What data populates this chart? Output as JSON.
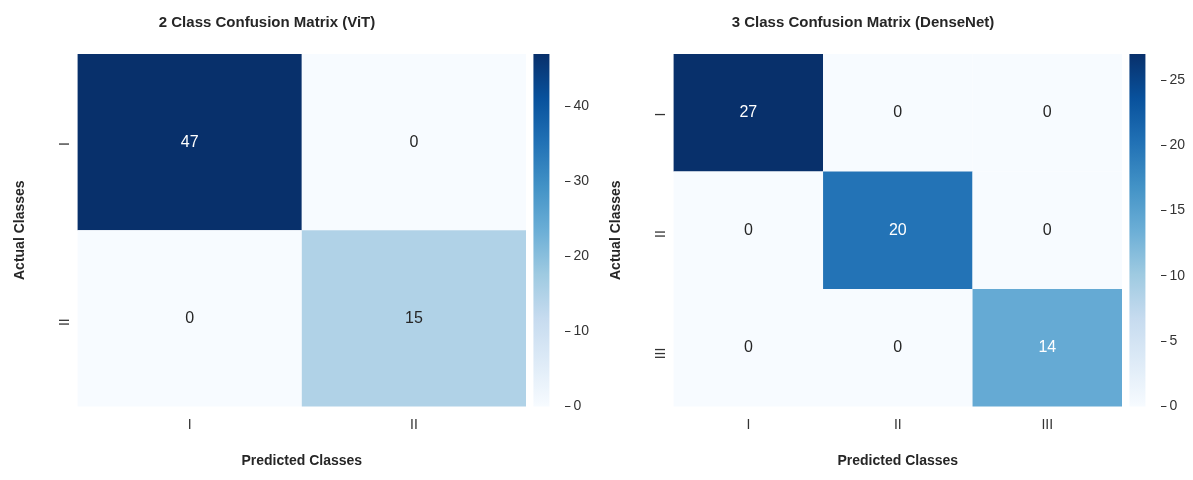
{
  "chart_data": [
    {
      "type": "heatmap",
      "title": "2 Class Confusion Matrix (ViT)",
      "xlabel": "Predicted Classes",
      "ylabel": "Actual Classes",
      "categories": [
        "I",
        "II"
      ],
      "y_categories": [
        "I",
        "II"
      ],
      "cells": [
        [
          47,
          0
        ],
        [
          0,
          15
        ]
      ],
      "clim": [
        0,
        47
      ],
      "cticks": [
        0,
        10,
        20,
        30,
        40
      ],
      "data_labels": true
    },
    {
      "type": "heatmap",
      "title": "3 Class Confusion Matrix (DenseNet)",
      "xlabel": "Predicted Classes",
      "ylabel": "Actual Classes",
      "categories": [
        "I",
        "II",
        "III"
      ],
      "y_categories": [
        "I",
        "II",
        "III"
      ],
      "cells": [
        [
          27,
          0,
          0
        ],
        [
          0,
          20,
          0
        ],
        [
          0,
          0,
          14
        ]
      ],
      "clim": [
        0,
        27
      ],
      "cticks": [
        0,
        5,
        10,
        15,
        20,
        25
      ],
      "data_labels": true
    }
  ]
}
